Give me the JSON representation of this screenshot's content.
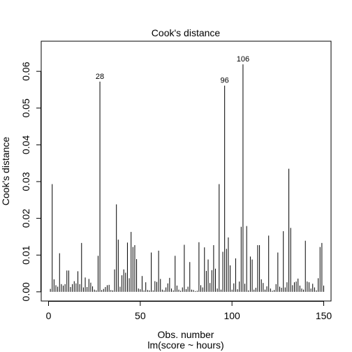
{
  "chart_data": {
    "type": "bar",
    "title": "Cook's distance",
    "xlabel": "Obs. number",
    "subtitle": "lm(score ~ hours)",
    "ylabel": "Cook's distance",
    "xlim": [
      -4,
      154
    ],
    "ylim": [
      -0.0025,
      0.0682
    ],
    "x_ticks": [
      0,
      50,
      100,
      150
    ],
    "y_ticks": [
      0.0,
      0.01,
      0.02,
      0.03,
      0.04,
      0.05,
      0.06
    ],
    "y_tick_labels": [
      "0.00",
      "0.01",
      "0.02",
      "0.03",
      "0.04",
      "0.05",
      "0.06"
    ],
    "grid": false,
    "annotations": [
      {
        "x": 28,
        "label": "28"
      },
      {
        "x": 96,
        "label": "96"
      },
      {
        "x": 106,
        "label": "106"
      }
    ],
    "x": [
      1,
      2,
      3,
      4,
      5,
      6,
      7,
      8,
      9,
      10,
      11,
      12,
      13,
      14,
      15,
      16,
      17,
      18,
      19,
      20,
      21,
      22,
      23,
      24,
      25,
      26,
      27,
      28,
      29,
      30,
      31,
      32,
      33,
      34,
      35,
      36,
      37,
      38,
      39,
      40,
      41,
      42,
      43,
      44,
      45,
      46,
      47,
      48,
      49,
      50,
      51,
      52,
      53,
      54,
      55,
      56,
      57,
      58,
      59,
      60,
      61,
      62,
      63,
      64,
      65,
      66,
      67,
      68,
      69,
      70,
      71,
      72,
      73,
      74,
      75,
      76,
      77,
      78,
      79,
      80,
      81,
      82,
      83,
      84,
      85,
      86,
      87,
      88,
      89,
      90,
      91,
      92,
      93,
      94,
      95,
      96,
      97,
      98,
      99,
      100,
      101,
      102,
      103,
      104,
      105,
      106,
      107,
      108,
      109,
      110,
      111,
      112,
      113,
      114,
      115,
      116,
      117,
      118,
      119,
      120,
      121,
      122,
      123,
      124,
      125,
      126,
      127,
      128,
      129,
      130,
      131,
      132,
      133,
      134,
      135,
      136,
      137,
      138,
      139,
      140,
      141,
      142,
      143,
      144,
      145,
      146,
      147,
      148,
      149,
      150
    ],
    "values": [
      0.0008,
      0.0293,
      0.0034,
      0.0018,
      0.0014,
      0.0105,
      0.0021,
      0.0017,
      0.0021,
      0.0058,
      0.0058,
      0.0013,
      0.0021,
      0.0029,
      0.0023,
      0.0056,
      0.0021,
      0.0133,
      0.0012,
      0.0039,
      0.0013,
      0.0035,
      0.0025,
      0.0015,
      0.0006,
      0.0004,
      0.0098,
      0.0572,
      0.0005,
      0.0008,
      0.0013,
      0.0018,
      0.0019,
      0.0005,
      0.0004,
      0.0061,
      0.0238,
      0.0142,
      0.0014,
      0.0045,
      0.0061,
      0.0052,
      0.0134,
      0.0037,
      0.0163,
      0.0122,
      0.0127,
      0.0089,
      0.0009,
      0.0007,
      0.0043,
      0.0004,
      0.0026,
      0.0005,
      0.0004,
      0.0107,
      0.0004,
      0.0029,
      0.0027,
      0.0112,
      0.0035,
      0.0006,
      0.0004,
      0.0012,
      0.0023,
      0.0038,
      0.0009,
      0.0004,
      0.0098,
      0.0017,
      0.0006,
      0.0003,
      0.0012,
      0.0128,
      0.0007,
      0.0014,
      0.0081,
      0.0006,
      0.0005,
      0.0002,
      0.0003,
      0.0135,
      0.0018,
      0.0012,
      0.0121,
      0.0057,
      0.0088,
      0.0024,
      0.0059,
      0.0127,
      0.0063,
      0.0009,
      0.0293,
      0.0006,
      0.0109,
      0.0561,
      0.0117,
      0.0148,
      0.0072,
      0.0006,
      0.0023,
      0.0091,
      0.0007,
      0.0028,
      0.0177,
      0.0619,
      0.0022,
      0.0179,
      0.0004,
      0.0096,
      0.0088,
      0.0006,
      0.0011,
      0.0127,
      0.0127,
      0.0034,
      0.0024,
      0.0006,
      0.0015,
      0.0153,
      0.0009,
      0.0003,
      0.0005,
      0.0021,
      0.0107,
      0.0014,
      0.0011,
      0.0165,
      0.0012,
      0.0026,
      0.0335,
      0.0174,
      0.0018,
      0.0026,
      0.0028,
      0.0036,
      0.0017,
      0.0009,
      0.0006,
      0.0139,
      0.0028,
      0.0026,
      0.0009,
      0.0022,
      0.0012,
      0.0004,
      0.0037,
      0.0122,
      0.0133,
      0.0017
    ]
  }
}
